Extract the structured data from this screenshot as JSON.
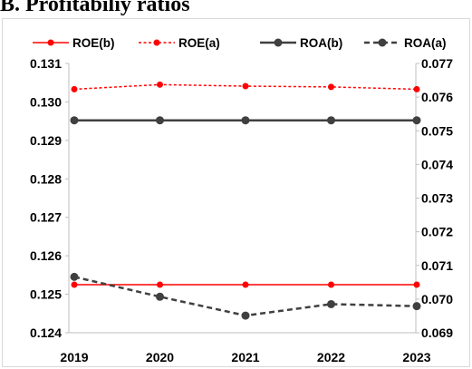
{
  "heading": "B. Profitabiliy ratios",
  "chart_data": {
    "type": "line",
    "title": "",
    "xlabel": "",
    "ylabel": "",
    "categories": [
      "2019",
      "2020",
      "2021",
      "2022",
      "2023"
    ],
    "y_left": {
      "ylim": [
        0.124,
        0.131
      ],
      "ticks": [
        "0.124",
        "0.125",
        "0.126",
        "0.127",
        "0.128",
        "0.129",
        "0.130",
        "0.131"
      ]
    },
    "y_right": {
      "ylim": [
        0.069,
        0.077
      ],
      "ticks": [
        "0.069",
        "0.070",
        "0.071",
        "0.072",
        "0.073",
        "0.074",
        "0.075",
        "0.076",
        "0.077"
      ]
    },
    "grid": false,
    "legend_position": "top",
    "series": [
      {
        "name": "ROE(b)",
        "axis": "left",
        "color": "#ff0000",
        "dash": false,
        "values": [
          0.12525,
          0.12525,
          0.12525,
          0.12525,
          0.12525
        ]
      },
      {
        "name": "ROE(a)",
        "axis": "left",
        "color": "#ff0000",
        "dash": true,
        "values": [
          0.13033,
          0.13045,
          0.13041,
          0.13039,
          0.13033
        ]
      },
      {
        "name": "ROA(b)",
        "axis": "right",
        "color": "#404040",
        "dash": false,
        "values": [
          0.07531,
          0.07531,
          0.07531,
          0.07531,
          0.07531
        ]
      },
      {
        "name": "ROA(a)",
        "axis": "right",
        "color": "#404040",
        "dash": true,
        "values": [
          0.07066,
          0.07007,
          0.06951,
          0.06985,
          0.06979
        ]
      }
    ]
  }
}
